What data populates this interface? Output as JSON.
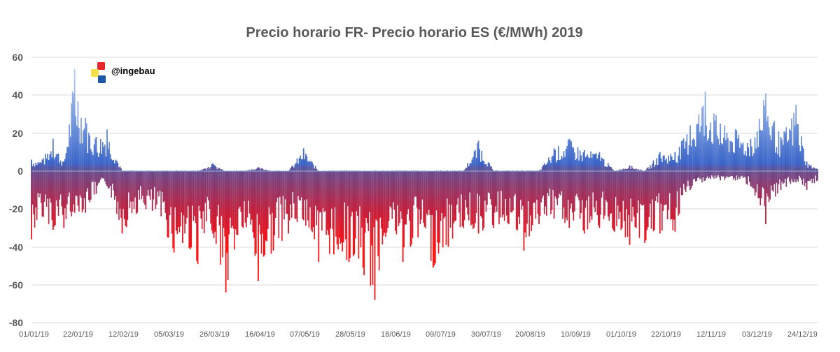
{
  "chart_data": {
    "type": "bar",
    "title": "Precio horario FR- Precio horario ES (€/MWh) 2019",
    "xlabel": "",
    "ylabel": "",
    "ylim": [
      -80,
      60
    ],
    "y_ticks": [
      "60",
      "40",
      "20",
      "0",
      "-20",
      "-40",
      "-60",
      "-80"
    ],
    "y_tick_values": [
      60,
      40,
      20,
      0,
      -20,
      -40,
      -60,
      -80
    ],
    "x_tick_labels": [
      "01/01/19",
      "22/01/19",
      "12/02/19",
      "05/03/19",
      "26/03/19",
      "16/04/19",
      "07/05/19",
      "28/05/19",
      "18/06/19",
      "09/07/19",
      "30/07/19",
      "20/08/19",
      "10/09/19",
      "01/10/19",
      "22/10/19",
      "12/11/19",
      "03/12/19",
      "24/12/19"
    ],
    "x_range_days": [
      0,
      364
    ],
    "grid": true,
    "colors": {
      "positive_top": "#a7c7ea",
      "positive_base": "#3a64c8",
      "zero_tone": "#6a4a8a",
      "negative_mid": "#b0284e",
      "negative_low": "#ff1010",
      "grid": "#d9d9d9",
      "zero_line": "#8eb4e3"
    },
    "series": [
      {
        "name": "Precio horario FR - Precio horario ES",
        "unit": "€/MWh",
        "envelope": [
          {
            "day": 0,
            "min": -36,
            "max": 6
          },
          {
            "day": 5,
            "min": -24,
            "max": 6
          },
          {
            "day": 10,
            "min": -31,
            "max": 17
          },
          {
            "day": 15,
            "min": -30,
            "max": 5
          },
          {
            "day": 20,
            "min": -22,
            "max": 54
          },
          {
            "day": 25,
            "min": -22,
            "max": 28
          },
          {
            "day": 30,
            "min": -12,
            "max": 18
          },
          {
            "day": 35,
            "min": -8,
            "max": 22
          },
          {
            "day": 42,
            "min": -33,
            "max": 0
          },
          {
            "day": 49,
            "min": -22,
            "max": 0
          },
          {
            "day": 56,
            "min": -21,
            "max": 0
          },
          {
            "day": 63,
            "min": -35,
            "max": 0
          },
          {
            "day": 66,
            "min": -43,
            "max": 0
          },
          {
            "day": 70,
            "min": -38,
            "max": 0
          },
          {
            "day": 77,
            "min": -49,
            "max": 0
          },
          {
            "day": 84,
            "min": -33,
            "max": 4
          },
          {
            "day": 90,
            "min": -64,
            "max": 0
          },
          {
            "day": 98,
            "min": -30,
            "max": 0
          },
          {
            "day": 105,
            "min": -58,
            "max": 2
          },
          {
            "day": 112,
            "min": -42,
            "max": 0
          },
          {
            "day": 119,
            "min": -33,
            "max": 0
          },
          {
            "day": 126,
            "min": -26,
            "max": 12
          },
          {
            "day": 133,
            "min": -48,
            "max": 0
          },
          {
            "day": 140,
            "min": -44,
            "max": 0
          },
          {
            "day": 147,
            "min": -48,
            "max": 0
          },
          {
            "day": 154,
            "min": -55,
            "max": 0
          },
          {
            "day": 159,
            "min": -68,
            "max": 0
          },
          {
            "day": 165,
            "min": -30,
            "max": 0
          },
          {
            "day": 172,
            "min": -48,
            "max": 0
          },
          {
            "day": 179,
            "min": -35,
            "max": 0
          },
          {
            "day": 186,
            "min": -51,
            "max": 0
          },
          {
            "day": 193,
            "min": -40,
            "max": 0
          },
          {
            "day": 200,
            "min": -30,
            "max": 0
          },
          {
            "day": 207,
            "min": -33,
            "max": 16
          },
          {
            "day": 214,
            "min": -30,
            "max": 0
          },
          {
            "day": 221,
            "min": -28,
            "max": 0
          },
          {
            "day": 228,
            "min": -42,
            "max": 0
          },
          {
            "day": 235,
            "min": -28,
            "max": 0
          },
          {
            "day": 242,
            "min": -25,
            "max": 12
          },
          {
            "day": 249,
            "min": -30,
            "max": 17
          },
          {
            "day": 256,
            "min": -33,
            "max": 11
          },
          {
            "day": 263,
            "min": -30,
            "max": 10
          },
          {
            "day": 270,
            "min": -32,
            "max": 0
          },
          {
            "day": 277,
            "min": -39,
            "max": 3
          },
          {
            "day": 284,
            "min": -38,
            "max": 0
          },
          {
            "day": 291,
            "min": -33,
            "max": 10
          },
          {
            "day": 298,
            "min": -32,
            "max": 10
          },
          {
            "day": 305,
            "min": -10,
            "max": 24
          },
          {
            "day": 312,
            "min": -5,
            "max": 42
          },
          {
            "day": 319,
            "min": -5,
            "max": 25
          },
          {
            "day": 326,
            "min": -5,
            "max": 22
          },
          {
            "day": 333,
            "min": -8,
            "max": 17
          },
          {
            "day": 340,
            "min": -28,
            "max": 41
          },
          {
            "day": 347,
            "min": -10,
            "max": 18
          },
          {
            "day": 354,
            "min": -6,
            "max": 35
          },
          {
            "day": 359,
            "min": -10,
            "max": 5
          },
          {
            "day": 364,
            "min": -5,
            "max": 1
          }
        ]
      }
    ]
  },
  "watermark": {
    "label": "@ingebau",
    "colors": [
      "#e8262a",
      "#f5e04a",
      "#1f57a8"
    ]
  }
}
